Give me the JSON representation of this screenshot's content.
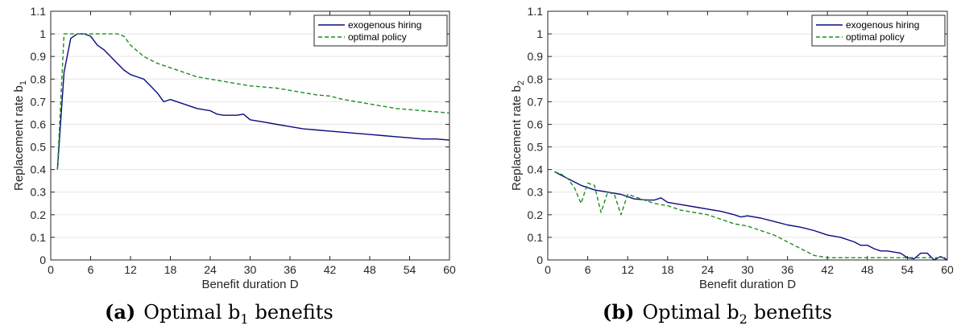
{
  "colors": {
    "exogenous": "#0b0b80",
    "optimal": "#1c8f1c",
    "grid": "#e6e6e6",
    "axis": "#262626"
  },
  "chart_data": [
    {
      "type": "line",
      "xlabel": "Benefit duration D",
      "ylabel": "Replacement rate b",
      "ylabel_sub": "1",
      "xlim": [
        0,
        60
      ],
      "ylim": [
        0,
        1.1
      ],
      "xticks": [
        "0",
        "6",
        "12",
        "18",
        "24",
        "30",
        "36",
        "42",
        "48",
        "54",
        "60"
      ],
      "yticks": [
        "0",
        "0.1",
        "0.2",
        "0.3",
        "0.4",
        "0.5",
        "0.6",
        "0.7",
        "0.8",
        "0.9",
        "1",
        "1.1"
      ],
      "grid": "horizontal",
      "legend_position": "top-right",
      "caption_label": "(a)",
      "caption_text": "Optimal b",
      "caption_sub": "1",
      "caption_tail": "benefits",
      "series": [
        {
          "name": "exogenous hiring",
          "style": "solid",
          "x": [
            1,
            2,
            3,
            4,
            5,
            6,
            7,
            8,
            9,
            10,
            11,
            12,
            13,
            14,
            15,
            16,
            17,
            18,
            19,
            20,
            22,
            24,
            25,
            26,
            27,
            28,
            29,
            30,
            32,
            34,
            36,
            38,
            40,
            42,
            44,
            46,
            48,
            50,
            52,
            54,
            56,
            58,
            60
          ],
          "y": [
            0.4,
            0.83,
            0.98,
            1.0,
            1.0,
            0.99,
            0.95,
            0.93,
            0.9,
            0.87,
            0.84,
            0.82,
            0.81,
            0.8,
            0.77,
            0.74,
            0.7,
            0.71,
            0.7,
            0.69,
            0.67,
            0.66,
            0.645,
            0.64,
            0.64,
            0.64,
            0.645,
            0.62,
            0.61,
            0.6,
            0.59,
            0.58,
            0.575,
            0.57,
            0.565,
            0.56,
            0.555,
            0.55,
            0.545,
            0.54,
            0.535,
            0.535,
            0.53
          ]
        },
        {
          "name": "optimal policy",
          "style": "dashed",
          "x": [
            1,
            2,
            3,
            4,
            5,
            6,
            7,
            8,
            9,
            10,
            11,
            12,
            14,
            16,
            18,
            20,
            22,
            24,
            26,
            28,
            30,
            32,
            34,
            36,
            38,
            40,
            42,
            44,
            46,
            48,
            50,
            52,
            54,
            56,
            58,
            60
          ],
          "y": [
            0.4,
            1.0,
            1.0,
            1.0,
            1.0,
            1.0,
            1.0,
            1.0,
            1.0,
            1.0,
            0.99,
            0.95,
            0.9,
            0.87,
            0.85,
            0.83,
            0.81,
            0.8,
            0.79,
            0.78,
            0.77,
            0.765,
            0.76,
            0.75,
            0.74,
            0.73,
            0.725,
            0.71,
            0.7,
            0.69,
            0.68,
            0.67,
            0.665,
            0.66,
            0.655,
            0.65
          ]
        }
      ]
    },
    {
      "type": "line",
      "xlabel": "Benefit duration D",
      "ylabel": "Replacement rate b",
      "ylabel_sub": "2",
      "xlim": [
        0,
        60
      ],
      "ylim": [
        0,
        1.1
      ],
      "xticks": [
        "0",
        "6",
        "12",
        "18",
        "24",
        "30",
        "36",
        "42",
        "48",
        "54",
        "60"
      ],
      "yticks": [
        "0",
        "0.1",
        "0.2",
        "0.3",
        "0.4",
        "0.5",
        "0.6",
        "0.7",
        "0.8",
        "0.9",
        "1",
        "1.1"
      ],
      "grid": "horizontal",
      "legend_position": "top-right",
      "caption_label": "(b)",
      "caption_text": "Optimal b",
      "caption_sub": "2",
      "caption_tail": "benefits",
      "series": [
        {
          "name": "exogenous hiring",
          "style": "solid",
          "x": [
            1,
            3,
            5,
            7,
            9,
            11,
            13,
            15,
            16,
            17,
            18,
            20,
            22,
            24,
            26,
            28,
            29,
            30,
            32,
            34,
            36,
            38,
            40,
            42,
            44,
            46,
            47,
            48,
            49,
            50,
            51,
            52,
            53,
            54,
            55,
            56,
            57,
            58,
            59,
            60
          ],
          "y": [
            0.39,
            0.36,
            0.33,
            0.31,
            0.3,
            0.29,
            0.27,
            0.265,
            0.265,
            0.275,
            0.255,
            0.245,
            0.235,
            0.225,
            0.215,
            0.2,
            0.19,
            0.195,
            0.185,
            0.17,
            0.155,
            0.145,
            0.13,
            0.11,
            0.1,
            0.08,
            0.065,
            0.065,
            0.05,
            0.04,
            0.04,
            0.035,
            0.03,
            0.01,
            0.005,
            0.03,
            0.03,
            0.0,
            0.015,
            0.0
          ]
        },
        {
          "name": "optimal policy",
          "style": "dashed",
          "x": [
            1,
            2,
            3,
            4,
            5,
            6,
            7,
            8,
            9,
            10,
            11,
            12,
            13,
            14,
            15,
            16,
            18,
            20,
            22,
            24,
            26,
            28,
            30,
            32,
            34,
            36,
            38,
            40,
            42,
            44,
            46,
            48,
            50,
            52,
            54,
            56,
            58,
            60
          ],
          "y": [
            0.39,
            0.38,
            0.36,
            0.32,
            0.25,
            0.34,
            0.33,
            0.21,
            0.3,
            0.29,
            0.2,
            0.29,
            0.28,
            0.27,
            0.26,
            0.25,
            0.24,
            0.22,
            0.21,
            0.2,
            0.18,
            0.16,
            0.15,
            0.13,
            0.11,
            0.08,
            0.05,
            0.02,
            0.01,
            0.01,
            0.01,
            0.01,
            0.01,
            0.01,
            0.01,
            0.01,
            0.01,
            0.01
          ]
        }
      ]
    }
  ]
}
